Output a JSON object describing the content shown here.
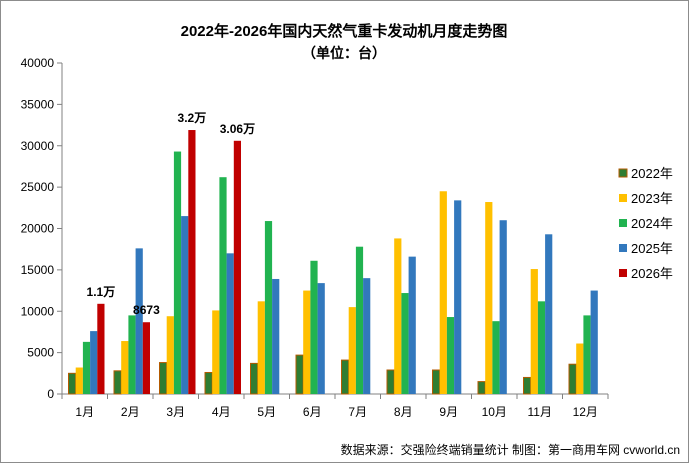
{
  "chart_data": {
    "type": "bar",
    "title": "2022年-2026年国内天然气重卡发动机月度走势图",
    "subtitle": "（单位：台）",
    "categories": [
      "1月",
      "2月",
      "3月",
      "4月",
      "5月",
      "6月",
      "7月",
      "8月",
      "9月",
      "10月",
      "11月",
      "12月"
    ],
    "ylim": [
      0,
      40000
    ],
    "yticks": [
      0,
      5000,
      10000,
      15000,
      20000,
      25000,
      30000,
      35000,
      40000
    ],
    "series": [
      {
        "name": "2022年",
        "color": "#2e7d32",
        "edge": "#b35a00",
        "values": [
          2500,
          2800,
          3800,
          2600,
          3700,
          4700,
          4100,
          2900,
          2900,
          1500,
          2000,
          3600
        ]
      },
      {
        "name": "2023年",
        "color": "#ffc000",
        "values": [
          3200,
          6400,
          9400,
          10100,
          11200,
          12500,
          10500,
          18800,
          24500,
          23200,
          15100,
          6100
        ]
      },
      {
        "name": "2024年",
        "color": "#21b350",
        "values": [
          6300,
          9500,
          29300,
          26200,
          20900,
          16100,
          17800,
          12200,
          9300,
          8800,
          11200,
          9500
        ]
      },
      {
        "name": "2025年",
        "color": "#3278bd",
        "values": [
          7600,
          17600,
          21500,
          17000,
          13900,
          13400,
          14000,
          16600,
          23400,
          21000,
          19300,
          12500
        ]
      },
      {
        "name": "2026年",
        "color": "#c00000",
        "values": [
          10900,
          8673,
          31900,
          30600,
          null,
          null,
          null,
          null,
          null,
          null,
          null,
          null
        ]
      }
    ],
    "annotations": [
      {
        "series": 4,
        "index": 0,
        "text": "1.1万"
      },
      {
        "series": 4,
        "index": 1,
        "text": "8673"
      },
      {
        "series": 4,
        "index": 2,
        "text": "3.2万"
      },
      {
        "series": 4,
        "index": 3,
        "text": "3.06万"
      }
    ],
    "legend_position": "right",
    "grid": false,
    "source": "数据来源：交强险终端销量统计   制图：第一商用车网 cvworld.cn"
  }
}
